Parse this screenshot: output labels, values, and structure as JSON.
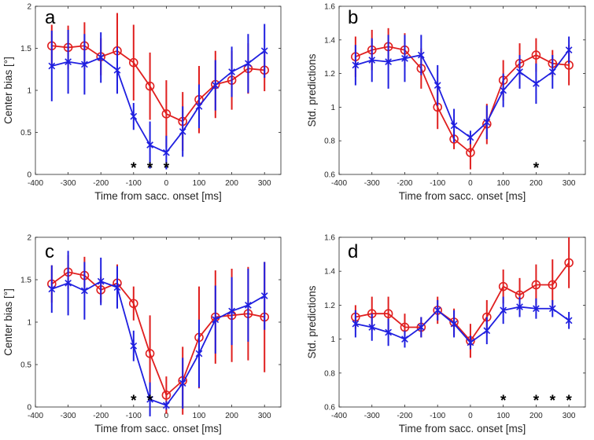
{
  "chart_data": [
    {
      "type": "line",
      "panel_label": "a",
      "xlabel": "Time from sacc. onset [ms]",
      "ylabel": "Center bias [°]",
      "xlim": [
        -400,
        350
      ],
      "ylim": [
        0,
        2
      ],
      "xticks": [
        "-400",
        "-300",
        "-200",
        "-100",
        "0",
        "100",
        "200",
        "300"
      ],
      "yticks": [
        "0",
        "0.5",
        "1",
        "1.5",
        "2"
      ],
      "x": [
        -350,
        -300,
        -250,
        -200,
        -150,
        -100,
        -50,
        0,
        50,
        100,
        150,
        200,
        250,
        300
      ],
      "series": [
        {
          "name": "blue",
          "color": "#1f1fe0",
          "marker": "x",
          "values": [
            1.29,
            1.34,
            1.31,
            1.39,
            1.24,
            0.69,
            0.35,
            0.26,
            0.51,
            0.81,
            1.06,
            1.22,
            1.32,
            1.47
          ],
          "err": [
            0.42,
            0.38,
            0.36,
            0.3,
            0.28,
            0.16,
            0.28,
            0.2,
            0.3,
            0.26,
            0.3,
            0.3,
            0.35,
            0.32
          ]
        },
        {
          "name": "red",
          "color": "#e01f1f",
          "marker": "o",
          "values": [
            1.53,
            1.51,
            1.53,
            1.4,
            1.47,
            1.33,
            1.05,
            0.72,
            0.63,
            0.89,
            1.07,
            1.12,
            1.26,
            1.24
          ]
        }
      ],
      "red_err": [
        0.25,
        0.26,
        0.28,
        0.22,
        0.45,
        0.45,
        0.4,
        0.4,
        0.35,
        0.4,
        0.4,
        0.35,
        0.3,
        0.25
      ],
      "significance": [
        "*",
        "*",
        "*"
      ],
      "significance_x": [
        -100,
        -50,
        0
      ]
    },
    {
      "type": "line",
      "panel_label": "b",
      "xlabel": "Time from sacc. onset [ms]",
      "ylabel": "Std. predictions",
      "xlim": [
        -400,
        350
      ],
      "ylim": [
        0.6,
        1.6
      ],
      "xticks": [
        "-400",
        "-300",
        "-200",
        "-100",
        "0",
        "100",
        "200",
        "300"
      ],
      "yticks": [
        "0.6",
        "0.8",
        "1",
        "1.2",
        "1.4",
        "1.6"
      ],
      "x": [
        -350,
        -300,
        -250,
        -200,
        -150,
        -100,
        -50,
        0,
        50,
        100,
        150,
        200,
        250,
        300
      ],
      "series": [
        {
          "name": "blue",
          "color": "#1f1fe0",
          "marker": "x",
          "values": [
            1.25,
            1.28,
            1.27,
            1.29,
            1.31,
            1.13,
            0.89,
            0.82,
            0.91,
            1.1,
            1.21,
            1.14,
            1.21,
            1.34
          ],
          "err": [
            0.12,
            0.13,
            0.16,
            0.14,
            0.12,
            0.12,
            0.1,
            0.04,
            0.1,
            0.1,
            0.1,
            0.12,
            0.1,
            0.08
          ]
        },
        {
          "name": "red",
          "color": "#e01f1f",
          "marker": "o",
          "values": [
            1.3,
            1.34,
            1.36,
            1.34,
            1.23,
            1.0,
            0.81,
            0.73,
            0.9,
            1.16,
            1.26,
            1.31,
            1.26,
            1.25
          ]
        }
      ],
      "red_err": [
        0.12,
        0.12,
        0.11,
        0.1,
        0.12,
        0.13,
        0.06,
        0.1,
        0.12,
        0.12,
        0.12,
        0.1,
        0.08,
        0.12
      ],
      "significance": [
        "*"
      ],
      "significance_x": [
        200
      ]
    },
    {
      "type": "line",
      "panel_label": "c",
      "xlabel": "Time from sacc. onset [ms]",
      "ylabel": "Center bias [°]",
      "xlim": [
        -400,
        350
      ],
      "ylim": [
        0,
        2
      ],
      "xticks": [
        "-400",
        "-300",
        "-200",
        "-100",
        "0",
        "100",
        "200",
        "300"
      ],
      "yticks": [
        "0",
        "0.5",
        "1",
        "1.5",
        "2"
      ],
      "x": [
        -350,
        -300,
        -250,
        -200,
        -150,
        -100,
        -50,
        0,
        50,
        100,
        150,
        200,
        250,
        300
      ],
      "series": [
        {
          "name": "blue",
          "color": "#1f1fe0",
          "marker": "x",
          "values": [
            1.39,
            1.46,
            1.37,
            1.48,
            1.41,
            0.72,
            0.09,
            0.02,
            0.28,
            0.63,
            1.03,
            1.13,
            1.2,
            1.31
          ],
          "err": [
            0.28,
            0.38,
            0.34,
            0.28,
            0.25,
            0.18,
            0.2,
            0.05,
            0.3,
            0.4,
            0.4,
            0.4,
            0.43,
            0.4
          ]
        },
        {
          "name": "red",
          "color": "#e01f1f",
          "marker": "o",
          "values": [
            1.45,
            1.59,
            1.55,
            1.38,
            1.46,
            1.22,
            0.63,
            0.14,
            0.31,
            0.82,
            1.06,
            1.08,
            1.1,
            1.06
          ]
        }
      ],
      "red_err": [
        0.22,
        0.2,
        0.22,
        0.15,
        0.22,
        0.2,
        0.45,
        0.22,
        0.4,
        0.6,
        0.55,
        0.55,
        0.55,
        0.65
      ],
      "significance": [
        "*",
        "*"
      ],
      "significance_x": [
        -100,
        -50
      ]
    },
    {
      "type": "line",
      "panel_label": "d",
      "xlabel": "Time from sacc. onset [ms]",
      "ylabel": "Std. predictions",
      "xlim": [
        -400,
        350
      ],
      "ylim": [
        0.6,
        1.6
      ],
      "xticks": [
        "-400",
        "-300",
        "-200",
        "-100",
        "0",
        "100",
        "200",
        "300"
      ],
      "yticks": [
        "0.6",
        "0.8",
        "1",
        "1.2",
        "1.4",
        "1.6"
      ],
      "x": [
        -350,
        -300,
        -250,
        -200,
        -150,
        -100,
        -50,
        0,
        50,
        100,
        150,
        200,
        250,
        300
      ],
      "series": [
        {
          "name": "blue",
          "color": "#1f1fe0",
          "marker": "x",
          "values": [
            1.09,
            1.07,
            1.04,
            1.0,
            1.07,
            1.17,
            1.09,
            0.98,
            1.05,
            1.17,
            1.19,
            1.18,
            1.18,
            1.11
          ],
          "err": [
            0.08,
            0.08,
            0.08,
            0.05,
            0.06,
            0.06,
            0.08,
            0.04,
            0.08,
            0.08,
            0.06,
            0.06,
            0.05,
            0.05
          ]
        },
        {
          "name": "red",
          "color": "#e01f1f",
          "marker": "o",
          "values": [
            1.13,
            1.15,
            1.15,
            1.07,
            1.07,
            1.17,
            1.1,
            0.99,
            1.13,
            1.31,
            1.26,
            1.32,
            1.32,
            1.45
          ]
        }
      ],
      "red_err": [
        0.07,
        0.1,
        0.1,
        0.08,
        0.06,
        0.08,
        0.08,
        0.1,
        0.1,
        0.1,
        0.1,
        0.12,
        0.15,
        0.15
      ],
      "significance": [
        "*",
        "*",
        "*",
        "*"
      ],
      "significance_x": [
        100,
        200,
        250,
        300
      ]
    }
  ]
}
